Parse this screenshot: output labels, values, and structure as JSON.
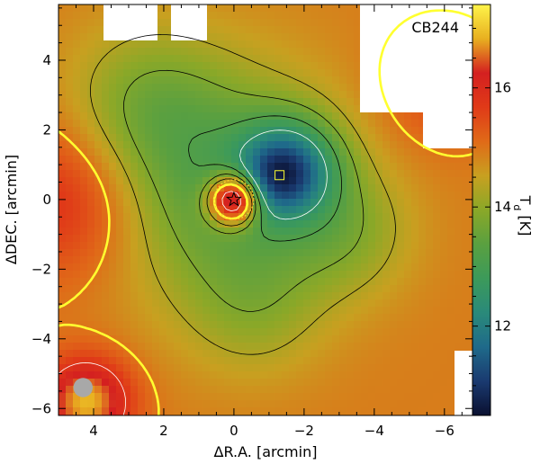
{
  "chart_data": {
    "type": "heatmap",
    "annotation": "CB244",
    "xlabel": "ΔR.A. [arcmin]",
    "ylabel": "ΔDEC. [arcmin]",
    "colorbar_label": "T_d [K]",
    "xlim": [
      5.0,
      -6.8
    ],
    "ylim": [
      -6.2,
      5.6
    ],
    "x_ticks": [
      4,
      2,
      0,
      -2,
      -4,
      -6
    ],
    "x_tick_labels": [
      "4",
      "2",
      "0",
      "−2",
      "−4",
      "−6"
    ],
    "y_ticks": [
      4,
      2,
      0,
      -2,
      -4,
      -6
    ],
    "y_tick_labels": [
      "4",
      "2",
      "0",
      "−2",
      "−4",
      "−6"
    ],
    "colorbar_range": [
      10.5,
      17.4
    ],
    "colorbar_ticks": [
      12,
      14,
      16
    ],
    "colorbar_tick_labels": [
      "12",
      "14",
      "16"
    ],
    "colormap": [
      "#0a1030",
      "#1a3a70",
      "#1f6a8a",
      "#2a8a7a",
      "#3c9a5a",
      "#5aa040",
      "#8aa828",
      "#c8a020",
      "#e06a18",
      "#e03a18",
      "#d42020",
      "#e8b020",
      "#fff44a"
    ],
    "temperature_field": {
      "background_K": 14.9,
      "components": [
        {
          "x": 0.3,
          "y": 0.4,
          "sigma": 2.4,
          "amp": -1.6
        },
        {
          "x": -1.6,
          "y": 0.9,
          "sigma": 1.0,
          "amp": -2.3
        },
        {
          "x": -1.2,
          "y": 0.6,
          "sigma": 0.7,
          "amp": -0.8
        },
        {
          "x": -3.3,
          "y": -1.0,
          "sigma": 1.3,
          "amp": -0.7
        },
        {
          "x": 2.6,
          "y": 2.8,
          "sigma": 1.6,
          "amp": -0.8
        },
        {
          "x": -0.6,
          "y": -3.2,
          "sigma": 1.4,
          "amp": -0.6
        },
        {
          "x": 0.0,
          "y": 0.0,
          "sigma": 0.5,
          "amp": 3.6
        },
        {
          "x": 4.2,
          "y": -5.8,
          "sigma": 0.9,
          "amp": 2.0
        },
        {
          "x": 4.8,
          "y": 0.0,
          "sigma": 1.6,
          "amp": 1.1
        },
        {
          "x": -5.8,
          "y": 3.2,
          "sigma": 1.2,
          "amp": 0.6
        }
      ]
    },
    "contour_levels_K": {
      "yellow": [
        15.0
      ],
      "white": [
        12.5,
        15.8
      ],
      "black": [
        13.2,
        13.8,
        14.3
      ]
    },
    "markers": [
      {
        "type": "star",
        "x": 0.0,
        "y": 0.0
      },
      {
        "type": "square",
        "x": -1.3,
        "y": 0.7
      }
    ],
    "beam": {
      "x": 4.3,
      "y": -5.4,
      "diameter_arcmin": 0.55
    },
    "grid": false
  }
}
